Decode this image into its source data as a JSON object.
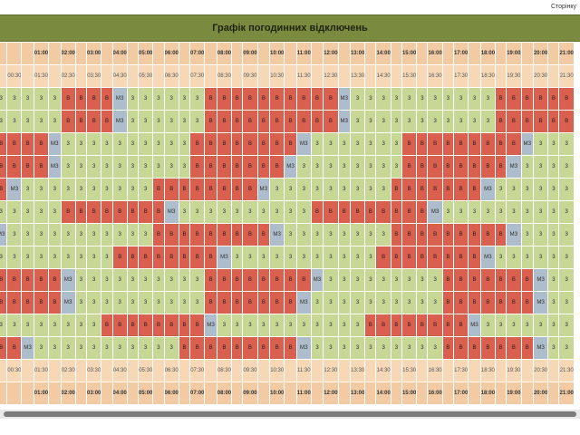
{
  "page_label": "Сторінку",
  "title": "Графік погодинних відключень",
  "hour_labels": [
    "",
    "01:00",
    "02:00",
    "03:00",
    "04:00",
    "05:00",
    "06:00",
    "07:00",
    "08:00",
    "09:00",
    "10:00",
    "11:00",
    "12:00",
    "13:00",
    "14:00",
    "15:00",
    "16:00",
    "17:00",
    "18:00",
    "19:00",
    "20:00",
    "21:00"
  ],
  "half_labels": [
    "00:30",
    "01:30",
    "02:30",
    "03:30",
    "04:30",
    "05:30",
    "06:30",
    "07:30",
    "08:30",
    "09:30",
    "10:30",
    "11:30",
    "12:30",
    "13:30",
    "14:30",
    "15:30",
    "16:30",
    "17:30",
    "18:30",
    "19:30",
    "20:30",
    "21:30"
  ],
  "legend": {
    "on": "3",
    "off": "В",
    "maybe": "МЗ"
  },
  "rows": [
    "VVVVVBBBBZVVVVVVBBBBBBBBBBZVVVVVVVVVVVBBBBBBBBBBZVVVVVBBBBBB",
    "VVVVVBBBBZVVVVVVBBBBBBBBBBZVVVVVVVVVVVBBBBBBBBBBZVVVVVBBBBBB",
    "BBBBZVVVVVVVVVVBBBBBBBBZVVVVVVVBBBBBBBBBZVVVVVVVVVBBBBBBBBZVV",
    "BBBBZVVVVVVVVVVBBBBBBBZVVVVVVVVBBBBBBBBZVVVVVVVVVVBBBBBBBBZVV",
    "BZVVVVVVVVVVBBBBBBBBZVVVVVVVVVBBBBBBBZVVVVVVVVVVBBBBBBBBZVVVB",
    "VVVVVBBBBBBBBZVVVVVVVVVVBBBBBBBBBZVVVVVVVVVVBBBBBBBZVVVVVVVVBB",
    "ZVVVVVVVVVVVBBBBBBBBBZVVVVVVVVBBBBBBBBBZVVVVVVVVVVBBBBBBBZVVV",
    "VVVVVVVVVBBBBBBBBZVVVVVVVVVVVBBBBBBBBZVVVVVVVVVVVBBBBBBBBBZVV",
    "BBBBBZVVVVVVVVVVBBBBBBBBZVVVVVVVVVBBBBBBBZVVVVVVVVVVBBBBBBBBZ",
    "BBBBBZVVVVVVVVVVBBBBBBBZVVVVVVVVVVBBBBBBBZVVVVVVVVVVBBBBBBBBZ",
    "VVVVVVVVBBBBBBBBZVVVVVVVVVVVBBBBBBBBZVVVVVVVVVVVBBBBBBBBZVVVV",
    "BBZVVVVVVVVVVVBBBBBBBBBZVVVVVVVVVVBBBBBBBZVVVVVVVVVVBBBBBBBZVV"
  ],
  "colors": {
    "on": "#c6d796",
    "off": "#d9604f",
    "maybe": "#aebdcb",
    "header": "#7a8a3e",
    "time_header": "#f2caa3"
  }
}
